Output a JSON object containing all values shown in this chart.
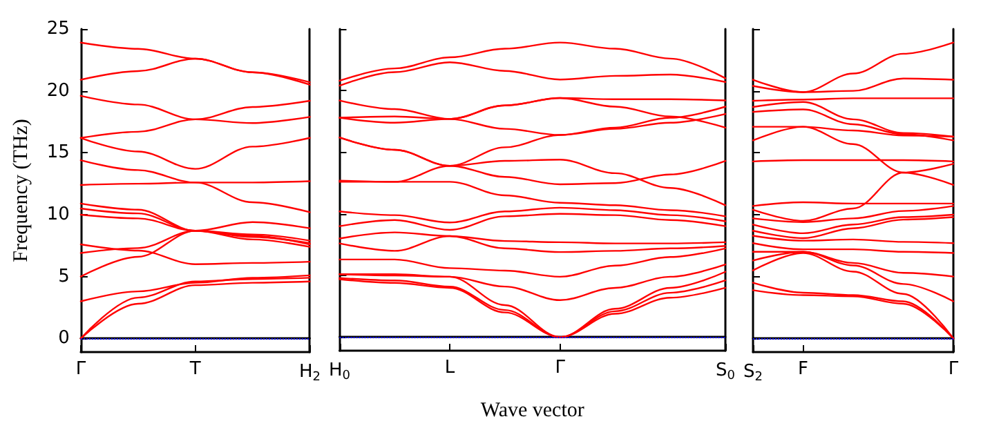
{
  "chart_data": [
    {
      "type": "line",
      "ylabel": "Frequency (THz)",
      "categories": [
        "Γ",
        null,
        "T",
        null,
        "H$_{2}$"
      ],
      "ylim": [
        -1.1,
        25
      ],
      "yticks": [
        0,
        5,
        10,
        15,
        20,
        25
      ],
      "marker": "none",
      "line_style": "solid",
      "ref_lines": [
        {
          "axis": "y",
          "value": 0,
          "color": "#0000ff",
          "line_style": "dotted"
        }
      ],
      "series": [
        {
          "color": "#ff0000",
          "values": [
            23.9,
            23.4,
            22.6,
            21.5,
            20.7
          ]
        },
        {
          "color": "#ff0000",
          "values": [
            20.9,
            21.6,
            22.6,
            21.5,
            20.5
          ]
        },
        {
          "color": "#ff0000",
          "values": [
            19.6,
            18.9,
            17.7,
            17.4,
            17.9
          ]
        },
        {
          "color": "#ff0000",
          "values": [
            16.2,
            16.7,
            17.7,
            18.7,
            19.2
          ]
        },
        {
          "color": "#ff0000",
          "values": [
            16.2,
            15.1,
            13.7,
            15.5,
            16.2
          ]
        },
        {
          "color": "#ff0000",
          "values": [
            14.4,
            13.6,
            12.6,
            11.0,
            10.2
          ]
        },
        {
          "color": "#ff0000",
          "values": [
            12.4,
            12.5,
            12.6,
            12.6,
            12.7
          ]
        },
        {
          "color": "#ff0000",
          "values": [
            10.9,
            10.4,
            8.7,
            9.4,
            8.9
          ]
        },
        {
          "color": "#ff0000",
          "values": [
            10.5,
            10.1,
            8.7,
            8.4,
            7.9
          ]
        },
        {
          "color": "#ff0000",
          "values": [
            10.0,
            9.7,
            8.7,
            8.0,
            7.4
          ]
        },
        {
          "color": "#ff0000",
          "values": [
            7.6,
            7.1,
            6.0,
            6.1,
            6.2
          ]
        },
        {
          "color": "#ff0000",
          "values": [
            6.9,
            7.3,
            8.7,
            8.2,
            7.7
          ]
        },
        {
          "color": "#ff0000",
          "values": [
            5.0,
            6.6,
            8.7,
            8.3,
            7.6
          ]
        },
        {
          "color": "#ff0000",
          "values": [
            3.0,
            3.8,
            4.5,
            4.9,
            5.1
          ]
        },
        {
          "color": "#ff0000",
          "values": [
            0,
            3.3,
            4.6,
            4.8,
            4.9
          ]
        },
        {
          "color": "#ff0000",
          "values": [
            0,
            2.8,
            4.3,
            4.5,
            4.6
          ]
        }
      ]
    },
    {
      "type": "line",
      "xlabel": "Wave vector",
      "categories": [
        "H$_{0}$",
        null,
        "L",
        null,
        "Γ",
        null,
        null,
        "S$_{0}$"
      ],
      "ylim": [
        -1.1,
        25
      ],
      "yticks": [
        0,
        5,
        10,
        15,
        20,
        25
      ],
      "tick_labels": "x",
      "marker": "none",
      "line_style": "solid",
      "ref_lines": [
        {
          "axis": "y",
          "value": 0,
          "color": "#0000ff",
          "line_style": "dotted"
        }
      ],
      "series": [
        {
          "color": "#ff0000",
          "values": [
            20.8,
            21.8,
            22.7,
            23.4,
            23.9,
            23.4,
            22.6,
            21.0
          ]
        },
        {
          "color": "#ff0000",
          "values": [
            20.4,
            21.5,
            22.3,
            21.6,
            20.9,
            21.2,
            21.3,
            20.7
          ]
        },
        {
          "color": "#ff0000",
          "values": [
            19.2,
            18.5,
            17.7,
            18.8,
            19.4,
            19.3,
            19.3,
            19.2
          ]
        },
        {
          "color": "#ff0000",
          "values": [
            17.8,
            17.4,
            17.7,
            18.8,
            19.4,
            18.7,
            17.9,
            17.0
          ]
        },
        {
          "color": "#ff0000",
          "values": [
            17.8,
            17.9,
            17.7,
            16.9,
            16.4,
            17.0,
            17.8,
            18.7
          ]
        },
        {
          "color": "#ff0000",
          "values": [
            16.2,
            15.2,
            13.9,
            15.4,
            16.4,
            16.9,
            17.4,
            18.1
          ]
        },
        {
          "color": "#ff0000",
          "values": [
            12.7,
            12.6,
            13.9,
            14.3,
            14.4,
            13.3,
            12.1,
            10.7
          ]
        },
        {
          "color": "#ff0000",
          "values": [
            16.2,
            15.2,
            13.9,
            13.0,
            12.4,
            12.5,
            13.2,
            14.3
          ]
        },
        {
          "color": "#ff0000",
          "values": [
            12.6,
            12.6,
            12.6,
            11.5,
            10.9,
            10.7,
            10.3,
            9.8
          ]
        },
        {
          "color": "#ff0000",
          "values": [
            10.2,
            9.9,
            9.3,
            10.2,
            10.5,
            10.3,
            9.9,
            9.4
          ]
        },
        {
          "color": "#ff0000",
          "values": [
            9.0,
            9.5,
            8.7,
            9.8,
            10.0,
            9.9,
            9.5,
            9.0
          ]
        },
        {
          "color": "#ff0000",
          "values": [
            8.0,
            8.5,
            8.2,
            7.8,
            7.7,
            7.6,
            7.6,
            7.7
          ]
        },
        {
          "color": "#ff0000",
          "values": [
            7.6,
            7.0,
            8.2,
            7.2,
            6.9,
            7.0,
            7.2,
            7.4
          ]
        },
        {
          "color": "#ff0000",
          "values": [
            6.3,
            6.3,
            5.6,
            5.4,
            4.9,
            5.8,
            6.5,
            7.2
          ]
        },
        {
          "color": "#ff0000",
          "values": [
            5.1,
            5.1,
            4.9,
            4.1,
            3.0,
            4.0,
            4.9,
            5.9
          ]
        },
        {
          "color": "#ff0000",
          "values": [
            4.8,
            4.6,
            4.1,
            2.2,
            0,
            2.3,
            4.0,
            5.3
          ]
        },
        {
          "color": "#ff0000",
          "values": [
            5.1,
            5.0,
            4.9,
            2.6,
            0,
            2.1,
            3.6,
            4.6
          ]
        },
        {
          "color": "#ff0000",
          "values": [
            4.7,
            4.4,
            4.0,
            2.0,
            0,
            1.9,
            3.2,
            4.0
          ]
        }
      ]
    },
    {
      "type": "line",
      "categories": [
        "S$_{2}$",
        "F",
        null,
        null,
        "Γ"
      ],
      "ylim": [
        -1.1,
        25
      ],
      "yticks": [
        0,
        5,
        10,
        15,
        20,
        25
      ],
      "tick_labels": "x",
      "marker": "none",
      "line_style": "solid",
      "ref_lines": [
        {
          "axis": "y",
          "value": 0,
          "color": "#0000ff",
          "line_style": "dotted"
        }
      ],
      "series": [
        {
          "color": "#ff0000",
          "values": [
            20.9,
            19.9,
            21.4,
            23.0,
            23.9
          ]
        },
        {
          "color": "#ff0000",
          "values": [
            20.4,
            19.9,
            20.0,
            21.0,
            20.9
          ]
        },
        {
          "color": "#ff0000",
          "values": [
            19.2,
            19.3,
            19.4,
            19.4,
            19.4
          ]
        },
        {
          "color": "#ff0000",
          "values": [
            18.7,
            19.1,
            17.7,
            16.6,
            16.3
          ]
        },
        {
          "color": "#ff0000",
          "values": [
            18.3,
            18.5,
            17.3,
            16.5,
            16.0
          ]
        },
        {
          "color": "#ff0000",
          "values": [
            17.1,
            17.1,
            16.8,
            16.4,
            16.3
          ]
        },
        {
          "color": "#ff0000",
          "values": [
            16.0,
            17.1,
            15.7,
            13.4,
            12.4
          ]
        },
        {
          "color": "#ff0000",
          "values": [
            14.3,
            14.4,
            14.4,
            14.4,
            14.3
          ]
        },
        {
          "color": "#ff0000",
          "values": [
            10.7,
            11.0,
            10.9,
            10.9,
            10.9
          ]
        },
        {
          "color": "#ff0000",
          "values": [
            10.4,
            9.5,
            10.5,
            13.4,
            14.1
          ]
        },
        {
          "color": "#ff0000",
          "values": [
            9.7,
            9.4,
            9.7,
            10.3,
            10.7
          ]
        },
        {
          "color": "#ff0000",
          "values": [
            9.2,
            8.5,
            9.2,
            9.8,
            10.0
          ]
        },
        {
          "color": "#ff0000",
          "values": [
            8.7,
            8.1,
            8.9,
            9.6,
            9.8
          ]
        },
        {
          "color": "#ff0000",
          "values": [
            8.3,
            7.9,
            8.0,
            7.8,
            7.7
          ]
        },
        {
          "color": "#ff0000",
          "values": [
            7.7,
            7.2,
            7.2,
            7.0,
            6.9
          ]
        },
        {
          "color": "#ff0000",
          "values": [
            7.0,
            7.0,
            6.1,
            5.3,
            5.0
          ]
        },
        {
          "color": "#ff0000",
          "values": [
            6.3,
            7.0,
            5.9,
            4.4,
            3.0
          ]
        },
        {
          "color": "#ff0000",
          "values": [
            5.5,
            6.9,
            5.4,
            3.6,
            0
          ]
        },
        {
          "color": "#ff0000",
          "values": [
            4.5,
            3.7,
            3.5,
            3.0,
            0
          ]
        },
        {
          "color": "#ff0000",
          "values": [
            3.9,
            3.5,
            3.4,
            2.8,
            0
          ]
        }
      ]
    }
  ]
}
